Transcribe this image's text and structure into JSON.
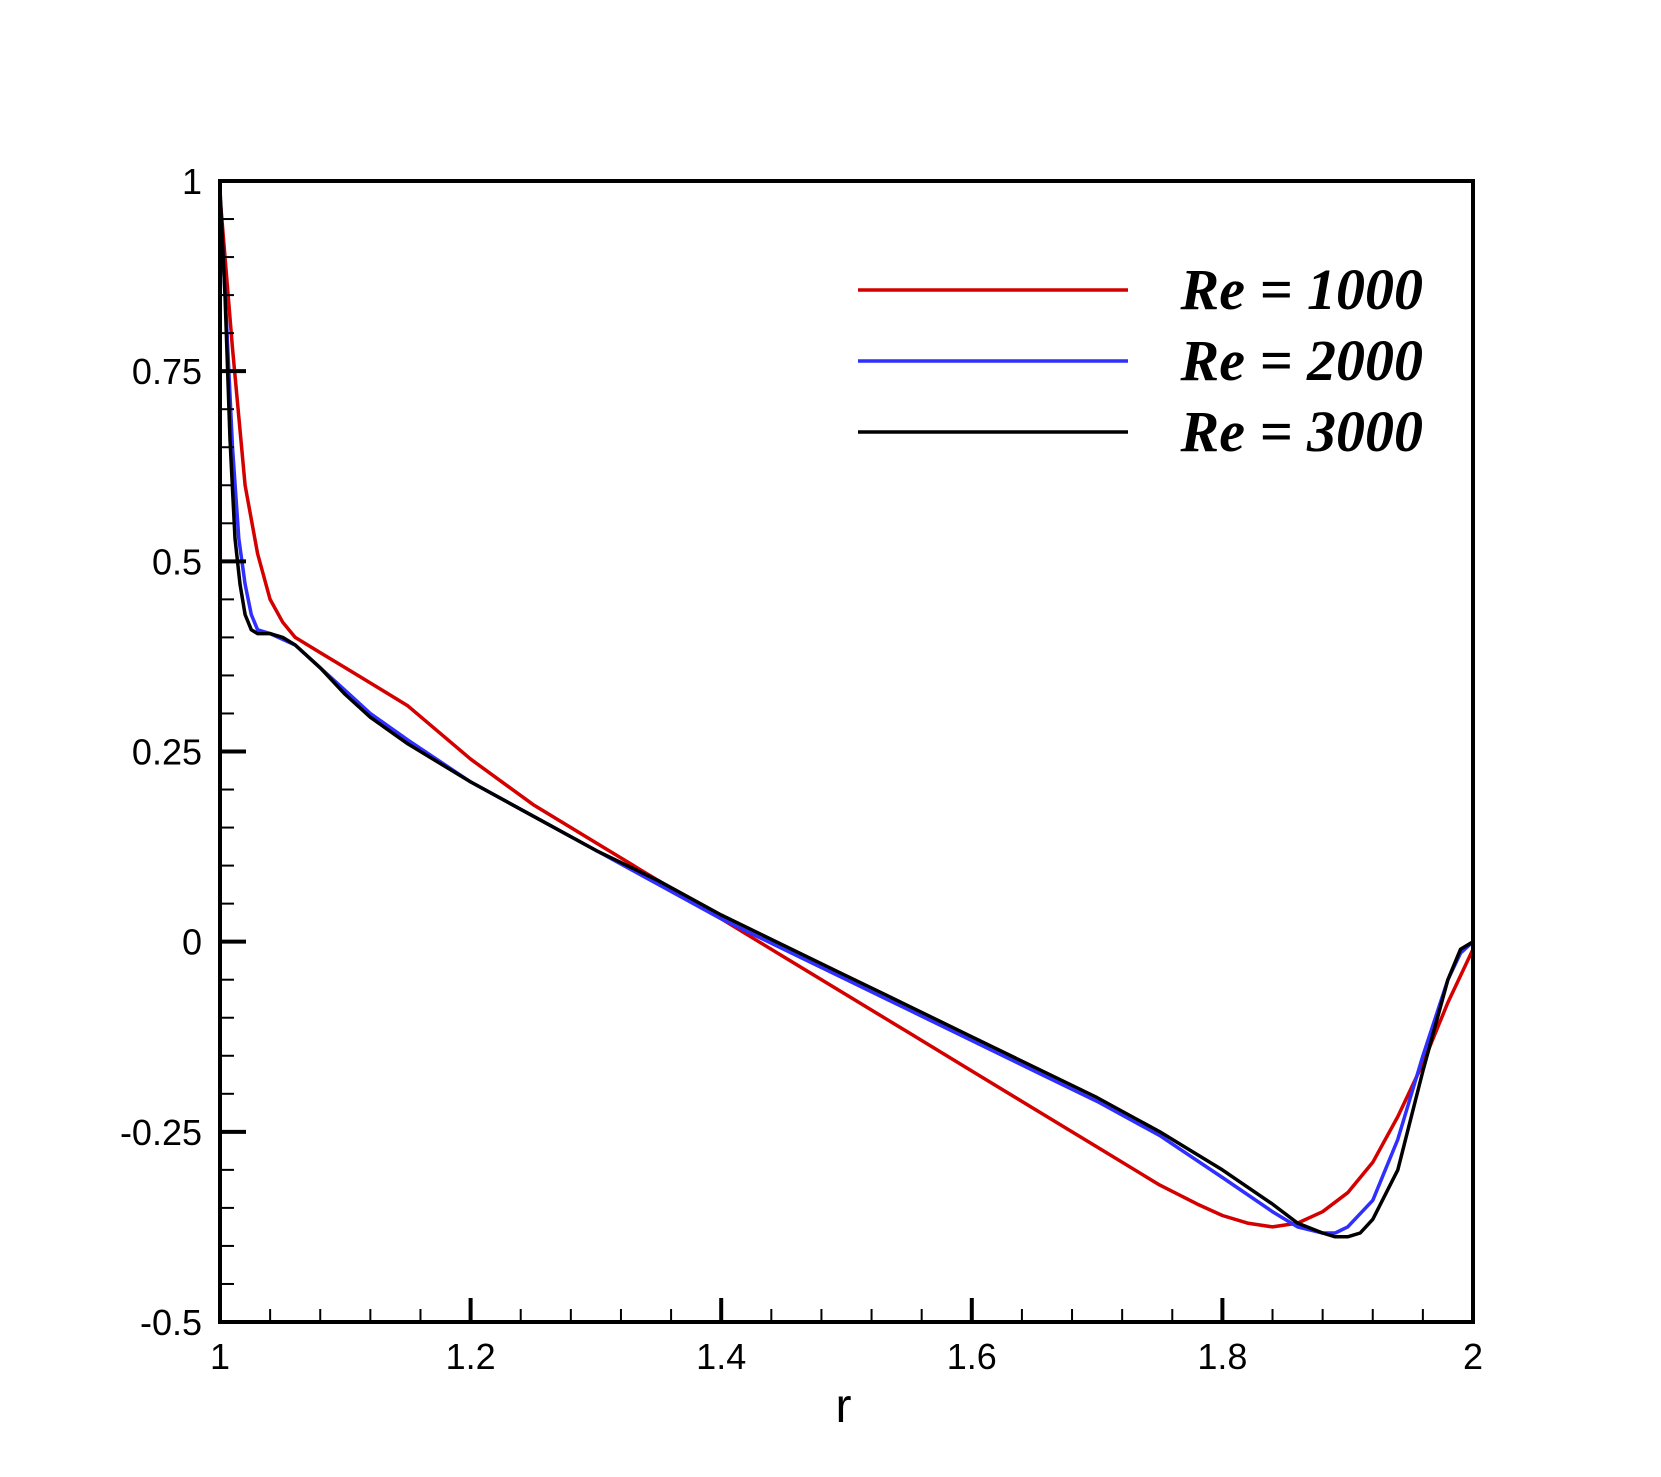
{
  "chart_data": {
    "type": "line",
    "title": "",
    "xlabel": "r",
    "ylabel": "",
    "xlim": [
      1,
      2
    ],
    "ylim": [
      -0.5,
      1
    ],
    "x_ticks": [
      1,
      1.2,
      1.4,
      1.6,
      1.8,
      2
    ],
    "x_tick_labels": [
      "1",
      "1.2",
      "1.4",
      "1.6",
      "1.8",
      "2"
    ],
    "y_ticks": [
      -0.5,
      -0.25,
      0,
      0.25,
      0.5,
      0.75,
      1
    ],
    "y_tick_labels": [
      "-0.5",
      "-0.25",
      "0",
      "0.25",
      "0.5",
      "0.75",
      "1"
    ],
    "grid": false,
    "legend_position": "top-right",
    "series": [
      {
        "name": "Re = 1000",
        "color": "#d40000",
        "x": [
          1.0,
          1.01,
          1.02,
          1.03,
          1.04,
          1.05,
          1.06,
          1.08,
          1.1,
          1.12,
          1.15,
          1.2,
          1.25,
          1.3,
          1.35,
          1.4,
          1.45,
          1.5,
          1.55,
          1.6,
          1.65,
          1.7,
          1.75,
          1.78,
          1.8,
          1.82,
          1.84,
          1.86,
          1.88,
          1.9,
          1.92,
          1.94,
          1.96,
          1.98,
          2.0
        ],
        "y": [
          0.98,
          0.78,
          0.6,
          0.51,
          0.45,
          0.42,
          0.4,
          0.38,
          0.36,
          0.34,
          0.31,
          0.24,
          0.18,
          0.13,
          0.08,
          0.03,
          -0.02,
          -0.07,
          -0.12,
          -0.17,
          -0.22,
          -0.27,
          -0.32,
          -0.345,
          -0.36,
          -0.37,
          -0.375,
          -0.37,
          -0.355,
          -0.33,
          -0.29,
          -0.23,
          -0.16,
          -0.08,
          -0.01
        ]
      },
      {
        "name": "Re = 2000",
        "color": "#2f2fff",
        "x": [
          1.0,
          1.005,
          1.01,
          1.015,
          1.02,
          1.025,
          1.03,
          1.04,
          1.06,
          1.08,
          1.1,
          1.12,
          1.15,
          1.2,
          1.25,
          1.3,
          1.35,
          1.4,
          1.45,
          1.5,
          1.55,
          1.6,
          1.65,
          1.7,
          1.75,
          1.8,
          1.84,
          1.86,
          1.88,
          1.89,
          1.9,
          1.92,
          1.94,
          1.96,
          1.98,
          1.99,
          2.0
        ],
        "y": [
          0.98,
          0.82,
          0.65,
          0.53,
          0.47,
          0.43,
          0.41,
          0.405,
          0.39,
          0.36,
          0.33,
          0.3,
          0.265,
          0.21,
          0.165,
          0.12,
          0.075,
          0.03,
          -0.01,
          -0.05,
          -0.09,
          -0.13,
          -0.17,
          -0.21,
          -0.255,
          -0.31,
          -0.355,
          -0.375,
          -0.383,
          -0.383,
          -0.375,
          -0.34,
          -0.26,
          -0.15,
          -0.05,
          -0.015,
          0.0
        ]
      },
      {
        "name": "Re = 3000",
        "color": "#000000",
        "x": [
          1.0,
          1.004,
          1.008,
          1.012,
          1.016,
          1.02,
          1.025,
          1.03,
          1.04,
          1.05,
          1.06,
          1.08,
          1.1,
          1.12,
          1.15,
          1.2,
          1.25,
          1.3,
          1.35,
          1.4,
          1.45,
          1.5,
          1.55,
          1.6,
          1.65,
          1.7,
          1.75,
          1.8,
          1.84,
          1.86,
          1.88,
          1.89,
          1.9,
          1.91,
          1.92,
          1.94,
          1.96,
          1.98,
          1.99,
          2.0
        ],
        "y": [
          0.99,
          0.85,
          0.66,
          0.53,
          0.47,
          0.43,
          0.41,
          0.405,
          0.405,
          0.4,
          0.39,
          0.36,
          0.325,
          0.295,
          0.26,
          0.21,
          0.165,
          0.12,
          0.08,
          0.035,
          -0.005,
          -0.045,
          -0.085,
          -0.125,
          -0.165,
          -0.205,
          -0.25,
          -0.3,
          -0.345,
          -0.37,
          -0.383,
          -0.388,
          -0.388,
          -0.383,
          -0.365,
          -0.3,
          -0.17,
          -0.05,
          -0.01,
          0.0
        ]
      }
    ]
  }
}
